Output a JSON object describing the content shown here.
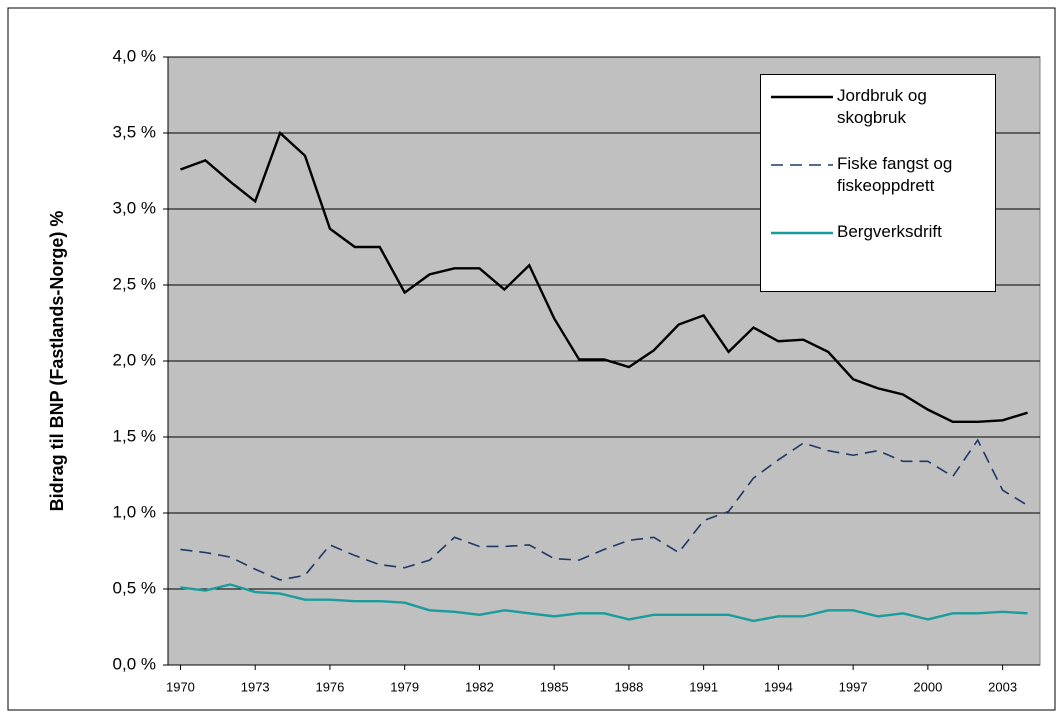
{
  "chart_data": {
    "type": "line",
    "y_label": "Bidrag til BNP (Fastlands-Norge) %",
    "x": [
      1970,
      1971,
      1972,
      1973,
      1974,
      1975,
      1976,
      1977,
      1978,
      1979,
      1980,
      1981,
      1982,
      1983,
      1984,
      1985,
      1986,
      1987,
      1988,
      1989,
      1990,
      1991,
      1992,
      1993,
      1994,
      1995,
      1996,
      1997,
      1998,
      1999,
      2000,
      2001,
      2002,
      2003,
      2004
    ],
    "series": [
      {
        "name": "Jordbruk og skogbruk",
        "color": "#000000",
        "dash": false,
        "values": [
          3.26,
          3.32,
          3.18,
          3.05,
          3.5,
          3.35,
          2.87,
          2.75,
          2.75,
          2.45,
          2.57,
          2.61,
          2.61,
          2.47,
          2.63,
          2.28,
          2.01,
          2.01,
          1.96,
          2.07,
          2.24,
          2.3,
          2.06,
          2.22,
          2.13,
          2.14,
          2.06,
          1.88,
          1.82,
          1.78,
          1.68,
          1.6,
          1.6,
          1.61,
          1.66
        ]
      },
      {
        "name": "Fiske fangst og fiskeoppdrett",
        "color": "#1f3864",
        "dash": true,
        "values": [
          0.76,
          0.74,
          0.71,
          0.63,
          0.56,
          0.59,
          0.79,
          0.72,
          0.66,
          0.64,
          0.69,
          0.84,
          0.78,
          0.78,
          0.79,
          0.7,
          0.69,
          0.76,
          0.82,
          0.84,
          0.74,
          0.95,
          1.01,
          1.23,
          1.35,
          1.46,
          1.41,
          1.38,
          1.41,
          1.34,
          1.34,
          1.24,
          1.48,
          1.15,
          1.05
        ]
      },
      {
        "name": "Bergverksdrift",
        "color": "#1a9c9c",
        "dash": false,
        "values": [
          0.51,
          0.49,
          0.53,
          0.48,
          0.47,
          0.43,
          0.43,
          0.42,
          0.42,
          0.41,
          0.36,
          0.35,
          0.33,
          0.36,
          0.34,
          0.32,
          0.34,
          0.34,
          0.3,
          0.33,
          0.33,
          0.33,
          0.33,
          0.29,
          0.32,
          0.32,
          0.36,
          0.36,
          0.32,
          0.34,
          0.3,
          0.34,
          0.34,
          0.35,
          0.34
        ]
      }
    ],
    "xlim": [
      1969.5,
      2004.5
    ],
    "xticks": [
      1970,
      1973,
      1976,
      1979,
      1982,
      1985,
      1988,
      1991,
      1994,
      1997,
      2000,
      2003
    ],
    "ylim": [
      0,
      4
    ],
    "yticks": [
      {
        "value": 0,
        "label": "0,0 %"
      },
      {
        "value": 0.5,
        "label": "0,5 %"
      },
      {
        "value": 1,
        "label": "1,0 %"
      },
      {
        "value": 1.5,
        "label": "1,5 %"
      },
      {
        "value": 2,
        "label": "2,0 %"
      },
      {
        "value": 2.5,
        "label": "2,5 %"
      },
      {
        "value": 3,
        "label": "3,0 %"
      },
      {
        "value": 3.5,
        "label": "3,5 %"
      },
      {
        "value": 4,
        "label": "4,0 %"
      }
    ],
    "grid": true,
    "plot_background": "#c0c0c0",
    "legend": "upper right"
  }
}
